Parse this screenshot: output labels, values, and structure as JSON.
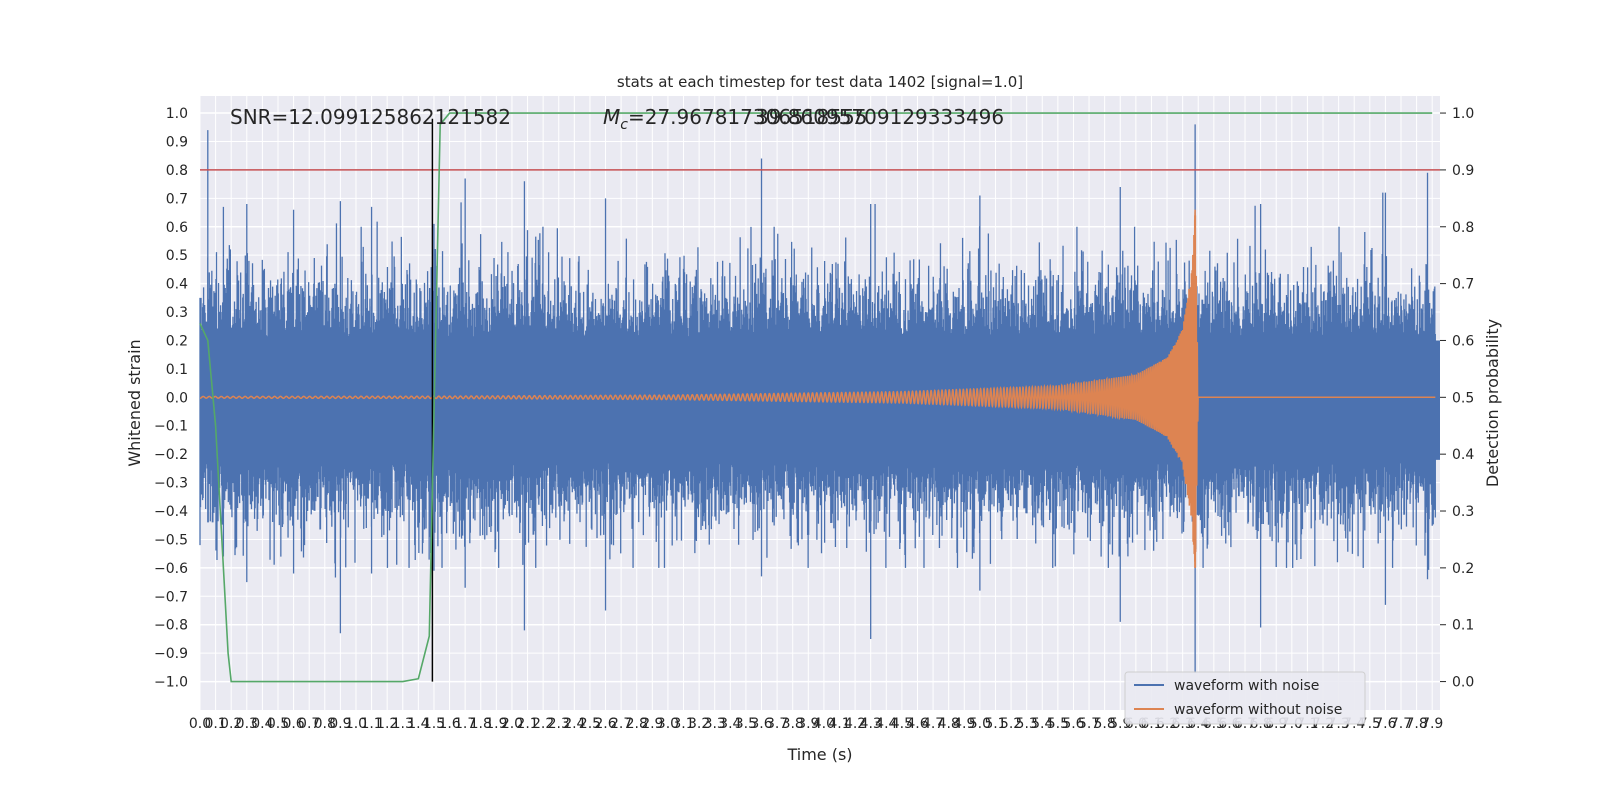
{
  "chart_data": {
    "type": "line",
    "title": "stats at each timestep for test data 1402 [signal=1.0]",
    "xlabel": "Time (s)",
    "ylabel": "Whitened strain",
    "y2label": "Detection probability",
    "xlim": [
      0.0,
      7.95
    ],
    "ylim": [
      -1.1,
      1.06
    ],
    "y2lim": [
      -0.05,
      1.03
    ],
    "x_ticks": [
      "0.0",
      "0.1",
      "0.2",
      "0.3",
      "0.4",
      "0.5",
      "0.6",
      "0.7",
      "0.8",
      "0.9",
      "1.0",
      "1.1",
      "1.2",
      "1.3",
      "1.4",
      "1.5",
      "1.6",
      "1.7",
      "1.8",
      "1.9",
      "2.0",
      "2.1",
      "2.2",
      "2.3",
      "2.4",
      "2.5",
      "2.6",
      "2.7",
      "2.8",
      "2.9",
      "3.0",
      "3.1",
      "3.2",
      "3.3",
      "3.4",
      "3.5",
      "3.6",
      "3.7",
      "3.8",
      "3.9",
      "4.0",
      "4.1",
      "4.2",
      "4.3",
      "4.4",
      "4.5",
      "4.6",
      "4.7",
      "4.8",
      "4.9",
      "5.0",
      "5.1",
      "5.2",
      "5.3",
      "5.4",
      "5.5",
      "5.6",
      "5.7",
      "5.8",
      "5.9",
      "6.0",
      "6.1",
      "6.2",
      "6.3",
      "6.4",
      "6.5",
      "6.6",
      "6.7",
      "6.8",
      "6.9",
      "7.0",
      "7.1",
      "7.2",
      "7.3",
      "7.4",
      "7.5",
      "7.6",
      "7.7",
      "7.8",
      "7.9"
    ],
    "y_ticks": [
      "1.0",
      "0.9",
      "0.8",
      "0.7",
      "0.6",
      "0.5",
      "0.4",
      "0.3",
      "0.2",
      "0.1",
      "0.0",
      "−0.1",
      "−0.2",
      "−0.3",
      "−0.4",
      "−0.5",
      "−0.6",
      "−0.7",
      "−0.8",
      "−0.9",
      "−1.0"
    ],
    "y2_ticks": [
      "1.0",
      "0.9",
      "0.8",
      "0.7",
      "0.6",
      "0.5",
      "0.4",
      "0.3",
      "0.2",
      "0.1",
      "0.0"
    ],
    "annotations": {
      "snr": "SNR=12.099125862121582",
      "mc_prefix": "M",
      "mc_sub": "c",
      "mc_value": "=27.967817306518555",
      "mc_overlap": "39.86095709129333496"
    },
    "grid": true,
    "legend_position": "lower-right",
    "series": [
      {
        "name": "waveform with noise",
        "axis": "left",
        "color": "#4c72b0",
        "envelope_samples": [
          [
            0.0,
            -0.52,
            0.35
          ],
          [
            0.05,
            -0.44,
            0.94
          ],
          [
            0.15,
            -0.56,
            0.67
          ],
          [
            0.3,
            -0.65,
            0.68
          ],
          [
            0.6,
            -0.62,
            0.66
          ],
          [
            0.9,
            -0.83,
            0.69
          ],
          [
            1.1,
            -0.62,
            0.67
          ],
          [
            1.5,
            -0.61,
            0.61
          ],
          [
            1.7,
            -0.67,
            0.77
          ],
          [
            2.08,
            -0.82,
            0.76
          ],
          [
            2.6,
            -0.75,
            0.7
          ],
          [
            3.6,
            -0.63,
            0.84
          ],
          [
            4.3,
            -0.85,
            0.68
          ],
          [
            5.0,
            -0.68,
            0.71
          ],
          [
            5.9,
            -0.79,
            0.74
          ],
          [
            6.38,
            -0.97,
            0.96
          ],
          [
            6.8,
            -0.81,
            0.68
          ],
          [
            7.6,
            -0.73,
            0.72
          ],
          [
            7.87,
            -0.64,
            0.79
          ]
        ]
      },
      {
        "name": "waveform without noise",
        "axis": "left",
        "color": "#dd8452",
        "chirp_envelope": [
          [
            0.0,
            0.003
          ],
          [
            1.5,
            0.004
          ],
          [
            3.0,
            0.008
          ],
          [
            4.5,
            0.02
          ],
          [
            5.5,
            0.04
          ],
          [
            6.0,
            0.08
          ],
          [
            6.2,
            0.14
          ],
          [
            6.3,
            0.24
          ],
          [
            6.36,
            0.45
          ],
          [
            6.38,
            0.66
          ],
          [
            6.4,
            0.0
          ]
        ]
      },
      {
        "axis": "right",
        "color": "#55a868",
        "x": [
          0.0,
          0.05,
          0.1,
          0.18,
          0.2,
          1.3,
          1.4,
          1.47,
          1.51,
          1.54,
          1.6,
          7.9
        ],
        "values": [
          0.63,
          0.6,
          0.45,
          0.05,
          0.0,
          0.0,
          0.005,
          0.08,
          0.6,
          0.98,
          1.0,
          1.0
        ]
      }
    ],
    "reference_lines": [
      {
        "kind": "horizontal",
        "axis": "right",
        "value": 0.9,
        "color": "#c44e52"
      },
      {
        "kind": "vertical",
        "x": 1.49,
        "color": "#000000"
      }
    ]
  }
}
